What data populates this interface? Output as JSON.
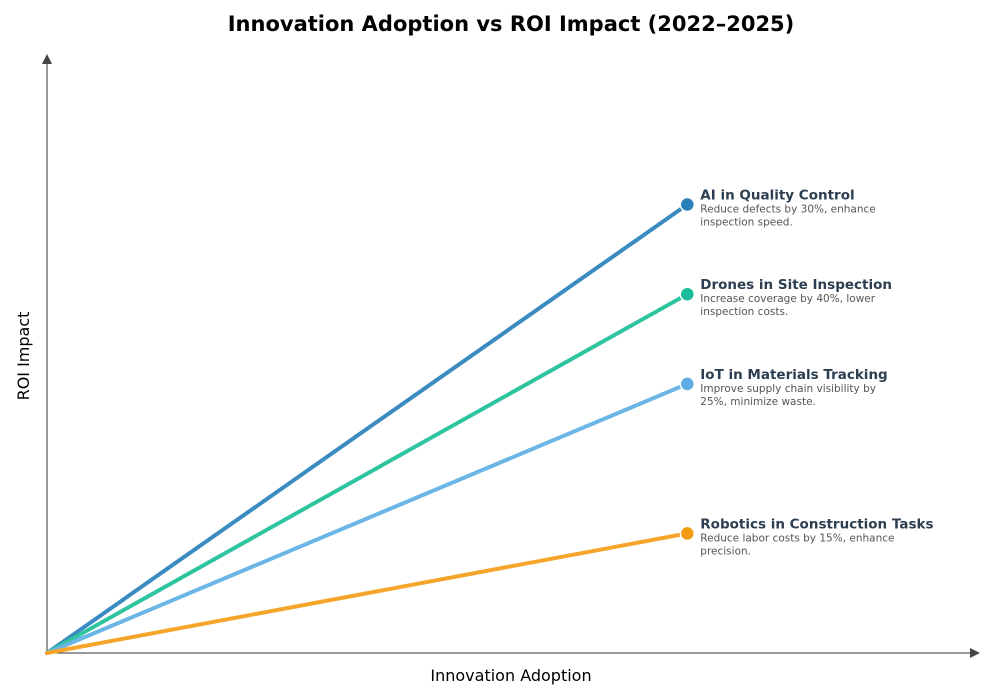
{
  "chart_data": {
    "type": "line",
    "title": "Innovation Adoption vs ROI Impact (2022–2025)",
    "xlabel": "Innovation Adoption",
    "ylabel": "ROI Impact",
    "xlim": [
      0,
      1.02
    ],
    "ylim": [
      0,
      1
    ],
    "grid": false,
    "ticks": false,
    "series": [
      {
        "name": "AI in Quality Control",
        "description_lines": [
          "Reduce defects by 30%, enhance",
          "inspection speed."
        ],
        "x": [
          0,
          0.7
        ],
        "y": [
          0,
          0.75
        ],
        "color": "#3a8bc2",
        "marker_color": "#2980b9"
      },
      {
        "name": "Drones in Site Inspection",
        "description_lines": [
          "Increase coverage by 40%, lower",
          "inspection costs."
        ],
        "x": [
          0,
          0.7
        ],
        "y": [
          0,
          0.6
        ],
        "color": "#2fc4a0",
        "marker_color": "#1abc9c"
      },
      {
        "name": "IoT in Materials Tracking",
        "description_lines": [
          "Improve supply chain visibility by",
          "25%, minimize waste."
        ],
        "x": [
          0,
          0.7
        ],
        "y": [
          0,
          0.45
        ],
        "color": "#6bb6e6",
        "marker_color": "#5dade2"
      },
      {
        "name": "Robotics in Construction Tasks",
        "description_lines": [
          "Reduce labor costs by 15%, enhance",
          "precision."
        ],
        "x": [
          0,
          0.7
        ],
        "y": [
          0,
          0.2
        ],
        "color": "#f5a62a",
        "marker_color": "#f39c12"
      }
    ]
  }
}
